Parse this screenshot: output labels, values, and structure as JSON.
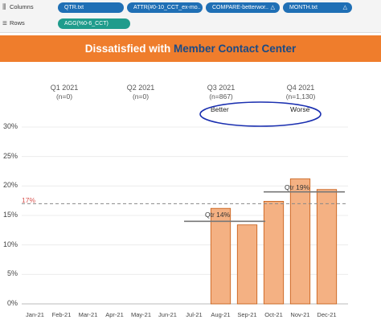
{
  "shelves": {
    "columns": {
      "label": "Columns",
      "pills": [
        {
          "text": "QTR.txt",
          "color": "#1f6fb5",
          "icon": ""
        },
        {
          "text": "ATTR(#0-10_CCT_ex-mo..",
          "color": "#1f6fb5",
          "icon": ""
        },
        {
          "text": "COMPARE-betterwor..",
          "color": "#1f6fb5",
          "icon": "delta-icon"
        },
        {
          "text": "MONTH.txt",
          "color": "#1f6fb5",
          "icon": "delta-icon"
        }
      ]
    },
    "rows": {
      "label": "Rows",
      "pills": [
        {
          "text": "AGG(%0-6_CCT)",
          "color": "#1f9c8c"
        }
      ]
    }
  },
  "title": {
    "prefix": "Dissatisfied with ",
    "accent": "Member Contact Center"
  },
  "quarters": [
    {
      "label": "Q1 2021",
      "n": "(n=0)"
    },
    {
      "label": "Q2 2021",
      "n": "(n=0)"
    },
    {
      "label": "Q3 2021",
      "n": "(n=867)"
    },
    {
      "label": "Q4 2021",
      "n": "(n=1,130)"
    }
  ],
  "compare": {
    "better": "Better",
    "worse": "Worse",
    "circle_color": "#1a2fb0"
  },
  "chart_data": {
    "type": "bar",
    "categories": [
      "Jan-21",
      "Feb-21",
      "Mar-21",
      "Apr-21",
      "May-21",
      "Jun-21",
      "Jul-21",
      "Aug-21",
      "Sep-21",
      "Oct-21",
      "Nov-21",
      "Dec-21"
    ],
    "values": [
      null,
      null,
      null,
      null,
      null,
      null,
      null,
      16.2,
      13.4,
      17.4,
      21.2,
      19.4
    ],
    "ylim": [
      0,
      30
    ],
    "yticks": [
      "0%",
      "5%",
      "10%",
      "15%",
      "20%",
      "25%",
      "30%"
    ],
    "reference_line": {
      "value": 17,
      "label": "17%",
      "color": "#d9534f"
    },
    "quarter_lines": [
      {
        "label": "Qtr 14%",
        "value": 14,
        "from": "Jul-21",
        "to": "Sep-21"
      },
      {
        "label": "Qtr 19%",
        "value": 19,
        "from": "Oct-21",
        "to": "Dec-21"
      }
    ],
    "bar_color": "#f4b183",
    "bar_stroke": "#c55a11",
    "grid": true
  }
}
